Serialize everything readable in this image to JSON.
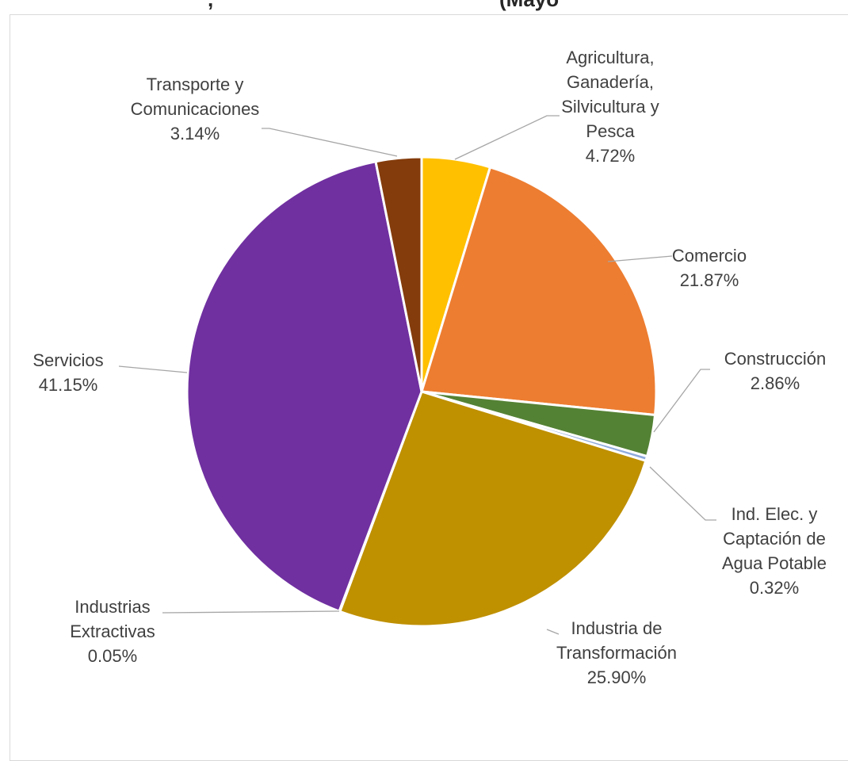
{
  "chart_data": {
    "type": "pie",
    "title": ", ",
    "title_note": "(Mayo ",
    "start_angle_deg": 0,
    "direction": "clockwise",
    "slices": [
      {
        "name_lines": [
          "Agricultura,",
          "Ganadería,",
          "Silvicultura y",
          "Pesca"
        ],
        "label": "4.72%",
        "value": 4.72,
        "color": "#FFC000"
      },
      {
        "name_lines": [
          "Comercio"
        ],
        "label": "21.87%",
        "value": 21.87,
        "color": "#ED7D31"
      },
      {
        "name_lines": [
          "Construcción"
        ],
        "label": "2.86%",
        "value": 2.86,
        "color": "#548235"
      },
      {
        "name_lines": [
          "Ind. Elec. y",
          "Captación de",
          "Agua Potable"
        ],
        "label": "0.32%",
        "value": 0.32,
        "color": "#8FAADC"
      },
      {
        "name_lines": [
          "Industria de",
          "Transformación"
        ],
        "label": "25.90%",
        "value": 25.9,
        "color": "#BF9000"
      },
      {
        "name_lines": [
          "Industrias",
          "Extractivas"
        ],
        "label": "0.05%",
        "value": 0.05,
        "color": "#A5A5A5"
      },
      {
        "name_lines": [
          "Servicios"
        ],
        "label": "41.15%",
        "value": 41.15,
        "color": "#7030A0"
      },
      {
        "name_lines": [
          "Transporte y",
          "Comunicaciones"
        ],
        "label": "3.14%",
        "value": 3.14,
        "color": "#843C0C"
      }
    ]
  }
}
